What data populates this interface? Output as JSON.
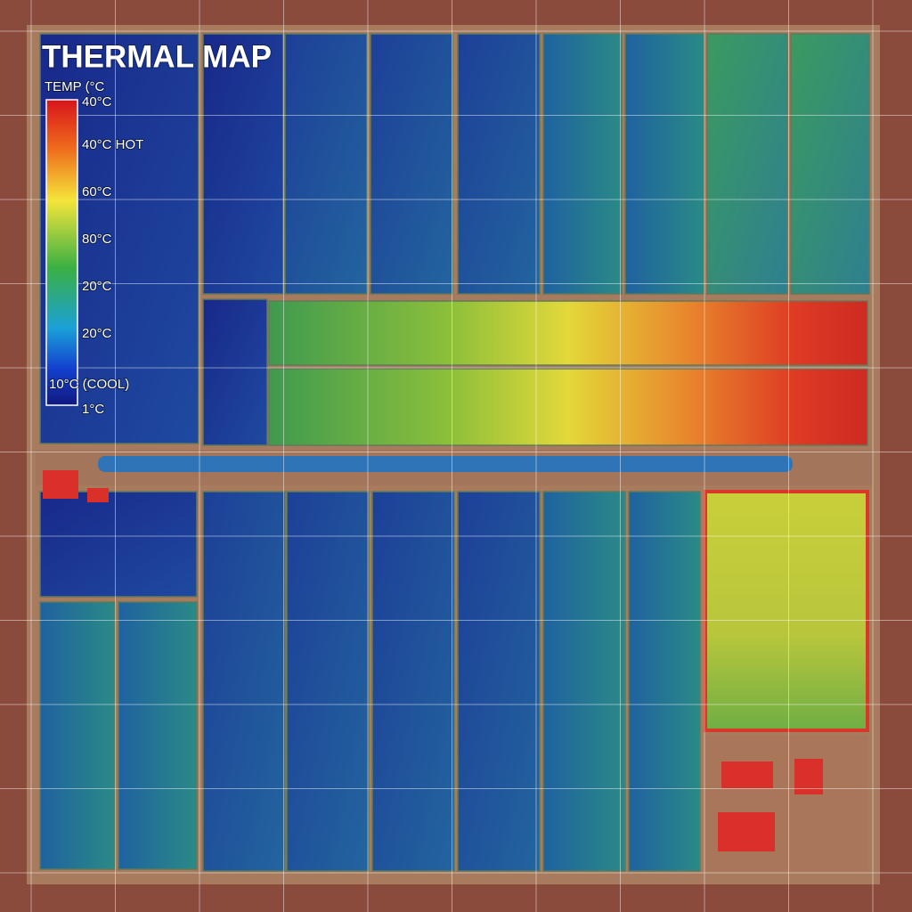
{
  "title": "THERMAL MAP",
  "legend": {
    "heading": "TEMP (°C",
    "labels": [
      "40°C",
      "40°C HOT",
      "60°C",
      "80°C",
      "20°C",
      "20°C",
      "10°C (COOL)",
      "1°C"
    ]
  }
}
